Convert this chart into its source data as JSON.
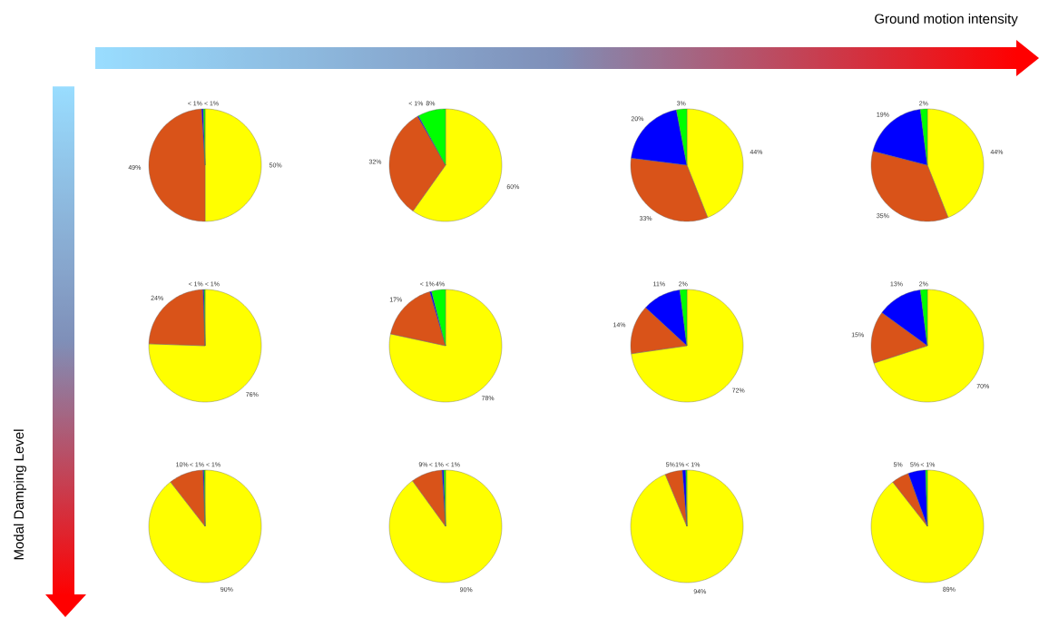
{
  "chart_data": [
    {
      "type": "pie",
      "categories": [
        null,
        null,
        null,
        null
      ],
      "values": [
        50,
        49,
        0.5,
        0.5
      ],
      "colors": [
        "#ffff00",
        "#d95319",
        "#0000ff",
        "#00ff00"
      ],
      "value_labels": [
        "50%",
        "49%",
        "< 1%",
        "< 1%"
      ]
    },
    {
      "type": "pie",
      "categories": [
        null,
        null,
        null,
        null
      ],
      "values": [
        60,
        32,
        0.3,
        8
      ],
      "colors": [
        "#ffff00",
        "#d95319",
        "#0000ff",
        "#00ff00"
      ],
      "value_labels": [
        "60%",
        "32%",
        "< 1%",
        "8%"
      ]
    },
    {
      "type": "pie",
      "categories": [
        null,
        null,
        null,
        null
      ],
      "values": [
        44,
        33,
        20,
        3
      ],
      "colors": [
        "#ffff00",
        "#d95319",
        "#0000ff",
        "#00ff00"
      ],
      "value_labels": [
        "44%",
        "33%",
        "20%",
        "3%"
      ]
    },
    {
      "type": "pie",
      "categories": [
        null,
        null,
        null,
        null
      ],
      "values": [
        44,
        35,
        19,
        2
      ],
      "colors": [
        "#ffff00",
        "#d95319",
        "#0000ff",
        "#00ff00"
      ],
      "value_labels": [
        "44%",
        "35%",
        "19%",
        "2%"
      ]
    },
    {
      "type": "pie",
      "categories": [
        null,
        null,
        null,
        null
      ],
      "values": [
        76,
        24,
        0.3,
        0.3
      ],
      "colors": [
        "#ffff00",
        "#d95319",
        "#0000ff",
        "#00ff00"
      ],
      "value_labels": [
        "76%",
        "24%",
        "< 1%",
        "< 1%"
      ]
    },
    {
      "type": "pie",
      "categories": [
        null,
        null,
        null,
        null
      ],
      "values": [
        78,
        17,
        0.5,
        4
      ],
      "colors": [
        "#ffff00",
        "#d95319",
        "#0000ff",
        "#00ff00"
      ],
      "value_labels": [
        "78%",
        "17%",
        "< 1%",
        "4%"
      ]
    },
    {
      "type": "pie",
      "categories": [
        null,
        null,
        null,
        null
      ],
      "values": [
        72,
        14,
        11,
        2
      ],
      "colors": [
        "#ffff00",
        "#d95319",
        "#0000ff",
        "#00ff00"
      ],
      "value_labels": [
        "72%",
        "14%",
        "11%",
        "2%"
      ]
    },
    {
      "type": "pie",
      "categories": [
        null,
        null,
        null,
        null
      ],
      "values": [
        70,
        15,
        13,
        2
      ],
      "colors": [
        "#ffff00",
        "#d95319",
        "#0000ff",
        "#00ff00"
      ],
      "value_labels": [
        "70%",
        "15%",
        "13%",
        "2%"
      ]
    },
    {
      "type": "pie",
      "categories": [
        null,
        null,
        null,
        null
      ],
      "values": [
        90,
        10,
        0.3,
        0.3
      ],
      "colors": [
        "#ffff00",
        "#d95319",
        "#0000ff",
        "#00ff00"
      ],
      "value_labels": [
        "90%",
        "10%",
        "< 1%",
        "< 1%"
      ]
    },
    {
      "type": "pie",
      "categories": [
        null,
        null,
        null,
        null
      ],
      "values": [
        90,
        9,
        0.5,
        0.5
      ],
      "colors": [
        "#ffff00",
        "#d95319",
        "#0000ff",
        "#00ff00"
      ],
      "value_labels": [
        "90%",
        "9%",
        "< 1%",
        "< 1%"
      ]
    },
    {
      "type": "pie",
      "categories": [
        null,
        null,
        null,
        null
      ],
      "values": [
        94,
        5,
        1,
        0.3
      ],
      "colors": [
        "#ffff00",
        "#d95319",
        "#0000ff",
        "#00ff00"
      ],
      "value_labels": [
        "94%",
        "5%",
        "1%",
        "< 1%"
      ]
    },
    {
      "type": "pie",
      "categories": [
        null,
        null,
        null,
        null
      ],
      "values": [
        89,
        5,
        5,
        0.5
      ],
      "colors": [
        "#ffff00",
        "#d95319",
        "#0000ff",
        "#00ff00"
      ],
      "value_labels": [
        "89%",
        "5%",
        "5%",
        "< 1%"
      ]
    },
    {
      "type": "other",
      "annotations": [
        "Ground motion intensity",
        "Modal Damping Level"
      ]
    }
  ]
}
